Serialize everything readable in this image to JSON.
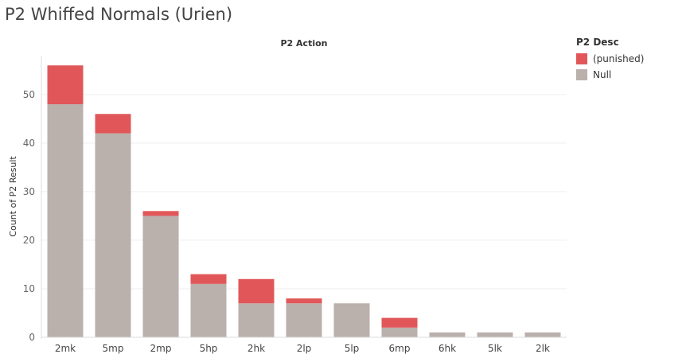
{
  "chart_title": "P2 Whiffed Normals (Urien)",
  "colors": {
    "punished": "#e15759",
    "null": "#bab0ac"
  },
  "legend": {
    "title": "P2 Desc",
    "items": [
      {
        "label": "(punished)",
        "color": "#e15759"
      },
      {
        "label": "Null",
        "color": "#bab0ac"
      }
    ]
  },
  "chart_data": {
    "type": "bar",
    "stacked": true,
    "title": "P2 Whiffed Normals (Urien)",
    "column_header": "P2 Action",
    "xlabel": "",
    "ylabel": "Count of P2 Result",
    "categories": [
      "2mk",
      "5mp",
      "2mp",
      "5hp",
      "2hk",
      "2lp",
      "5lp",
      "6mp",
      "6hk",
      "5lk",
      "2lk"
    ],
    "series": [
      {
        "name": "Null",
        "values": [
          48,
          42,
          25,
          11,
          7,
          7,
          7,
          2,
          1,
          1,
          1
        ]
      },
      {
        "name": "(punished)",
        "values": [
          8,
          4,
          1,
          2,
          5,
          1,
          0,
          2,
          0,
          0,
          0
        ]
      }
    ],
    "yticks": [
      0,
      10,
      20,
      30,
      40,
      50
    ],
    "ylim": [
      0,
      58
    ],
    "grid": true,
    "legend_position": "right"
  }
}
